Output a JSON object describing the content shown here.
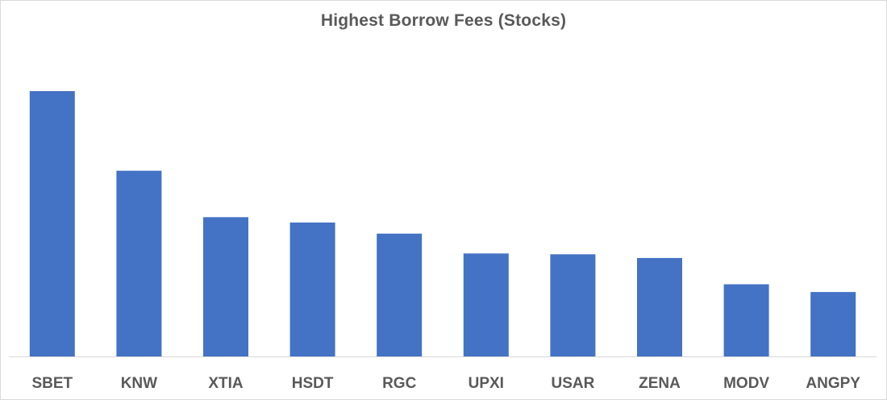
{
  "chart_data": {
    "type": "bar",
    "title": "Highest Borrow Fees (Stocks)",
    "xlabel": "",
    "ylabel": "",
    "categories": [
      "SBET",
      "KNW",
      "XTIA",
      "HSDT",
      "RGC",
      "UPXI",
      "USAR",
      "ZENA",
      "MODV",
      "ANGPY"
    ],
    "values": [
      100,
      70,
      52.5,
      50.5,
      46.3,
      38.8,
      38.5,
      37.1,
      27.2,
      24.3
    ],
    "ylim": [
      0,
      100
    ],
    "grid": false,
    "legend": "none",
    "bar_color": "#4472c4",
    "axis_color": "#d9d9d9",
    "text_color": "#595959"
  }
}
